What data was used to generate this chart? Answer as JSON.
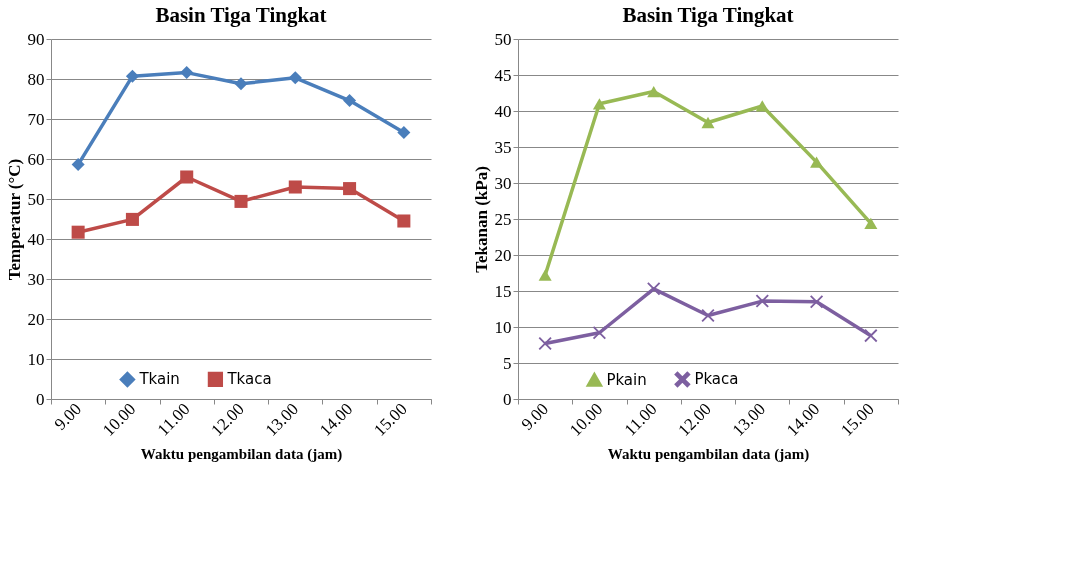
{
  "chart_data": [
    {
      "type": "line",
      "title": "Basin Tiga Tingkat",
      "xlabel": "Waktu pengambilan data (jam)",
      "ylabel": "Temperatur (°C)",
      "categories": [
        "9.00",
        "10.00",
        "11.00",
        "12.00",
        "13.00",
        "14.00",
        "15.00"
      ],
      "series": [
        {
          "name": "Tkain",
          "color": "#4a7ebb",
          "marker": "diamond",
          "values": [
            58.6,
            80.7,
            81.6,
            78.8,
            80.3,
            74.6,
            66.6
          ]
        },
        {
          "name": "Tkaca",
          "color": "#be4b48",
          "marker": "square",
          "values": [
            41.7,
            44.9,
            55.5,
            49.4,
            53.0,
            52.6,
            44.5
          ]
        }
      ],
      "ylim": [
        0,
        90
      ],
      "yticks": [
        0,
        10,
        20,
        30,
        40,
        50,
        60,
        70,
        80,
        90
      ],
      "grid": "y",
      "legend": "bottom"
    },
    {
      "type": "line",
      "title": "Basin Tiga Tingkat",
      "xlabel": "Waktu pengambilan data (jam)",
      "ylabel": "Tekanan (kPa)",
      "categories": [
        "9.00",
        "10.00",
        "11.00",
        "12.00",
        "13.00",
        "14.00",
        "15.00"
      ],
      "series": [
        {
          "name": "Pkain",
          "color": "#98b954",
          "marker": "triangle",
          "values": [
            17.2,
            41.0,
            42.7,
            38.4,
            40.7,
            32.9,
            24.4
          ]
        },
        {
          "name": "Pkaca",
          "color": "#7d5fa0",
          "marker": "cross",
          "values": [
            7.7,
            9.2,
            15.3,
            11.6,
            13.6,
            13.5,
            8.8
          ]
        }
      ],
      "ylim": [
        0,
        50
      ],
      "yticks": [
        0,
        5,
        10,
        15,
        20,
        25,
        30,
        35,
        40,
        45,
        50
      ],
      "grid": "y",
      "legend": "bottom"
    }
  ]
}
